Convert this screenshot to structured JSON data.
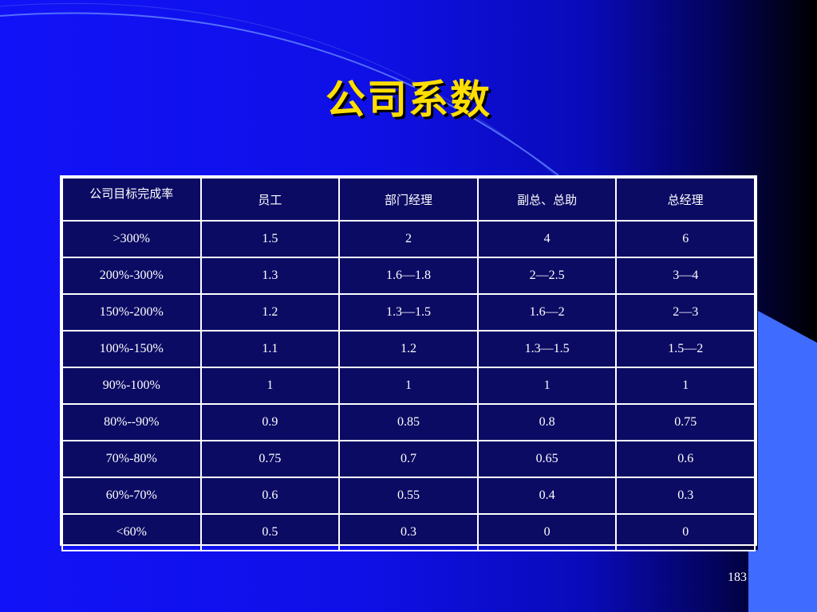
{
  "slide": {
    "title": "公司系数",
    "page_number": "183"
  },
  "table": {
    "headers": [
      "公司目标完成率",
      "员工",
      "部门经理",
      "副总、总助",
      "总经理"
    ],
    "rows": [
      [
        ">300%",
        "1.5",
        "2",
        "4",
        "6"
      ],
      [
        "200%-300%",
        "1.3",
        "1.6—1.8",
        "2—2.5",
        "3—4"
      ],
      [
        "150%-200%",
        "1.2",
        "1.3—1.5",
        "1.6—2",
        "2—3"
      ],
      [
        "100%-150%",
        "1.1",
        "1.2",
        "1.3—1.5",
        "1.5—2"
      ],
      [
        "90%-100%",
        "1",
        "1",
        "1",
        "1"
      ],
      [
        "80%--90%",
        "0.9",
        "0.85",
        "0.8",
        "0.75"
      ],
      [
        "70%-80%",
        "0.75",
        "0.7",
        "0.65",
        "0.6"
      ],
      [
        "60%-70%",
        "0.6",
        "0.55",
        "0.4",
        "0.3"
      ],
      [
        "<60%",
        "0.5",
        "0.3",
        "0",
        "0"
      ]
    ]
  },
  "colors": {
    "background": "#1010f0",
    "title": "#ffde00",
    "table_background": "#0b0b64",
    "accent_shape": "#3f6cff"
  }
}
